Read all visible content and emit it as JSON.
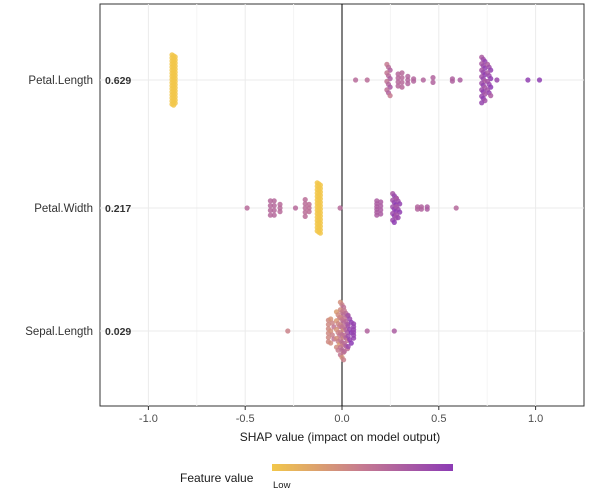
{
  "chart_data": {
    "type": "scatter",
    "subtype": "shap-beeswarm",
    "title": "",
    "xlabel": "SHAP value (impact on model output)",
    "ylabel": "",
    "xlim": [
      -1.25,
      1.25
    ],
    "x_ticks": [
      "-1.0",
      "-0.5",
      "0.0",
      "0.5",
      "1.0"
    ],
    "x_tick_values": [
      -1.0,
      -0.5,
      0.0,
      0.5,
      1.0
    ],
    "grid": true,
    "colors": {
      "low": "#f2c74b",
      "mid": "#c57a91",
      "high": "#8c3bb5"
    },
    "legend": {
      "title": "Feature value",
      "low_label": "Low",
      "placement": "bottom"
    },
    "features": [
      {
        "name": "Petal.Length",
        "importance": "0.629",
        "points": [
          {
            "x": -0.87,
            "count": 50,
            "value": 0.0,
            "spread": 0.42
          },
          {
            "x": 0.07,
            "count": 1,
            "value": 0.62,
            "spread": 0.0
          },
          {
            "x": 0.13,
            "count": 1,
            "value": 0.6,
            "spread": 0.0
          },
          {
            "x": 0.24,
            "count": 12,
            "value": 0.62,
            "spread": 0.26
          },
          {
            "x": 0.29,
            "count": 4,
            "value": 0.64,
            "spread": 0.1
          },
          {
            "x": 0.31,
            "count": 4,
            "value": 0.63,
            "spread": 0.12
          },
          {
            "x": 0.34,
            "count": 3,
            "value": 0.66,
            "spread": 0.06
          },
          {
            "x": 0.37,
            "count": 2,
            "value": 0.66,
            "spread": 0.02
          },
          {
            "x": 0.42,
            "count": 1,
            "value": 0.67,
            "spread": 0.0
          },
          {
            "x": 0.47,
            "count": 2,
            "value": 0.68,
            "spread": 0.04
          },
          {
            "x": 0.57,
            "count": 2,
            "value": 0.7,
            "spread": 0.02
          },
          {
            "x": 0.61,
            "count": 1,
            "value": 0.72,
            "spread": 0.0
          },
          {
            "x": 0.73,
            "count": 22,
            "value": 0.85,
            "spread": 0.38
          },
          {
            "x": 0.76,
            "count": 12,
            "value": 0.86,
            "spread": 0.26
          },
          {
            "x": 0.8,
            "count": 1,
            "value": 0.88,
            "spread": 0.0
          },
          {
            "x": 0.96,
            "count": 1,
            "value": 0.95,
            "spread": 0.0
          },
          {
            "x": 1.02,
            "count": 1,
            "value": 0.97,
            "spread": 0.0
          }
        ]
      },
      {
        "name": "Petal.Width",
        "importance": "0.217",
        "points": [
          {
            "x": -0.49,
            "count": 1,
            "value": 0.62,
            "spread": 0.0
          },
          {
            "x": -0.37,
            "count": 4,
            "value": 0.64,
            "spread": 0.12
          },
          {
            "x": -0.35,
            "count": 4,
            "value": 0.64,
            "spread": 0.12
          },
          {
            "x": -0.32,
            "count": 3,
            "value": 0.62,
            "spread": 0.06
          },
          {
            "x": -0.24,
            "count": 1,
            "value": 0.63,
            "spread": 0.0
          },
          {
            "x": -0.19,
            "count": 5,
            "value": 0.6,
            "spread": 0.14
          },
          {
            "x": -0.17,
            "count": 3,
            "value": 0.58,
            "spread": 0.06
          },
          {
            "x": -0.12,
            "count": 45,
            "value": 0.0,
            "spread": 0.42
          },
          {
            "x": -0.01,
            "count": 1,
            "value": 0.62,
            "spread": 0.0
          },
          {
            "x": 0.18,
            "count": 6,
            "value": 0.72,
            "spread": 0.12
          },
          {
            "x": 0.2,
            "count": 4,
            "value": 0.74,
            "spread": 0.1
          },
          {
            "x": 0.27,
            "count": 14,
            "value": 0.9,
            "spread": 0.24
          },
          {
            "x": 0.29,
            "count": 8,
            "value": 0.86,
            "spread": 0.16
          },
          {
            "x": 0.39,
            "count": 2,
            "value": 0.66,
            "spread": 0.02
          },
          {
            "x": 0.41,
            "count": 2,
            "value": 0.68,
            "spread": 0.02
          },
          {
            "x": 0.44,
            "count": 2,
            "value": 0.72,
            "spread": 0.02
          },
          {
            "x": 0.59,
            "count": 1,
            "value": 0.64,
            "spread": 0.0
          }
        ]
      },
      {
        "name": "Sepal.Length",
        "importance": "0.029",
        "points": [
          {
            "x": -0.28,
            "count": 1,
            "value": 0.45,
            "spread": 0.0
          },
          {
            "x": -0.07,
            "count": 6,
            "value": 0.4,
            "spread": 0.18
          },
          {
            "x": -0.05,
            "count": 7,
            "value": 0.45,
            "spread": 0.2
          },
          {
            "x": -0.02,
            "count": 14,
            "value": 0.4,
            "spread": 0.32
          },
          {
            "x": 0.0,
            "count": 24,
            "value": 0.48,
            "spread": 0.48
          },
          {
            "x": 0.02,
            "count": 16,
            "value": 0.62,
            "spread": 0.34
          },
          {
            "x": 0.04,
            "count": 10,
            "value": 0.9,
            "spread": 0.26
          },
          {
            "x": 0.06,
            "count": 6,
            "value": 0.92,
            "spread": 0.12
          },
          {
            "x": 0.13,
            "count": 1,
            "value": 0.68,
            "spread": 0.0
          },
          {
            "x": 0.27,
            "count": 1,
            "value": 0.72,
            "spread": 0.0
          }
        ]
      }
    ]
  }
}
